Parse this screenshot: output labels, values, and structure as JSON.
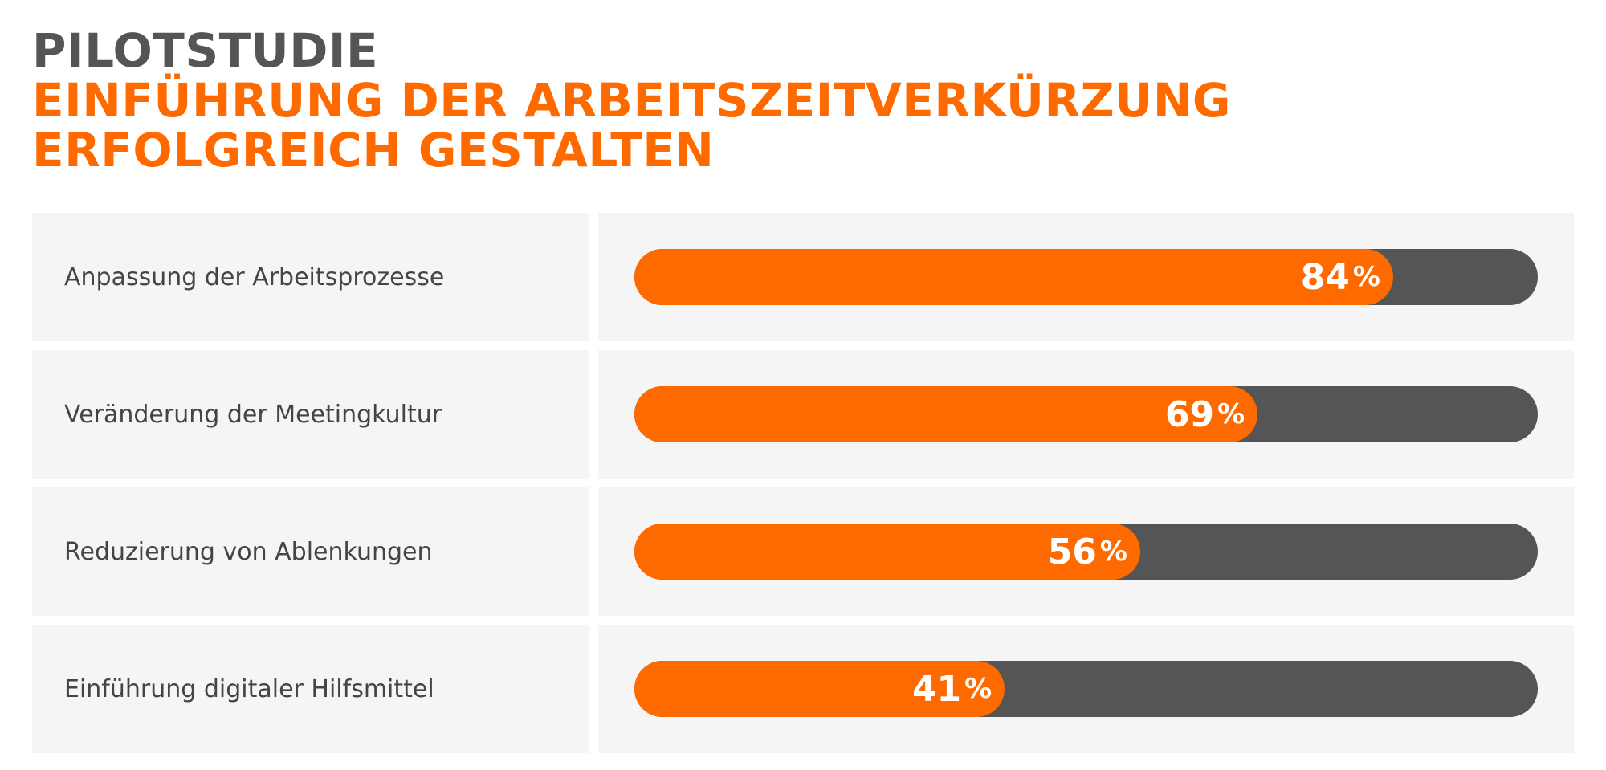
{
  "header": {
    "line1": "PILOTSTUDIE",
    "line2": "EINFÜHRUNG DER ARBEITSZEITVERKÜRZUNG",
    "line3": "ERFOLGREICH GESTALTEN"
  },
  "colors": {
    "accent": "#ff6a00",
    "track": "#555555",
    "title_dark": "#555555",
    "cell_background": "#f5f5f5"
  },
  "chart_data": {
    "type": "bar",
    "orientation": "horizontal",
    "categories": [
      "Anpassung der Arbeitsprozesse",
      "Veränderung der Meetingkultur",
      "Reduzierung von Ablenkungen",
      "Einführung digitaler Hilfsmittel"
    ],
    "values": [
      84,
      69,
      56,
      41
    ],
    "value_labels": [
      "84",
      "69",
      "56",
      "41"
    ],
    "unit": "%",
    "xlim": [
      0,
      100
    ],
    "grid": false,
    "legend": "none"
  }
}
